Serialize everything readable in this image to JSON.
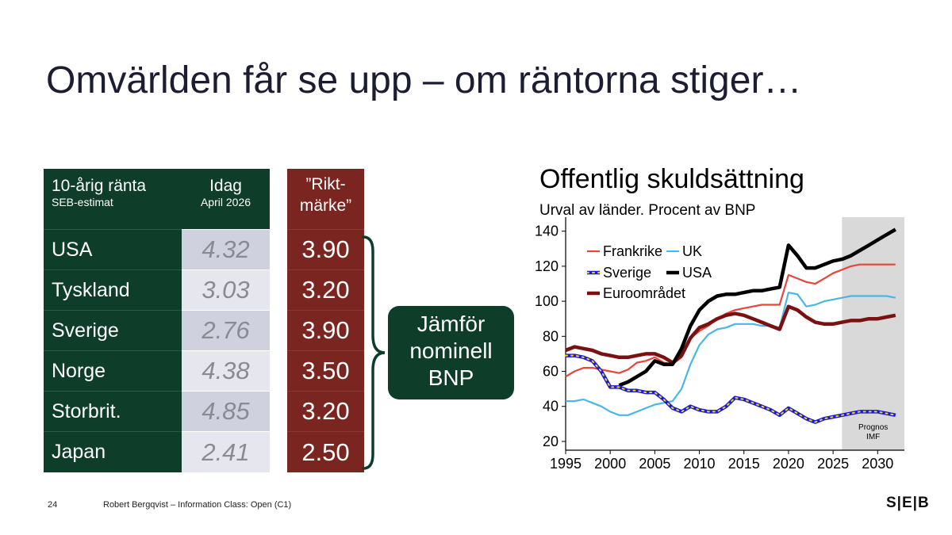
{
  "title": "Omvärlden får se upp – om räntorna stiger…",
  "table": {
    "country_header": "10-årig ränta",
    "country_subheader": "SEB-estimat",
    "idag_header": "Idag",
    "idag_subheader": "April 2026",
    "rikt_header_line1": "”Rikt-",
    "rikt_header_line2": "märke”",
    "rows": [
      {
        "country": "USA",
        "idag": "4.32",
        "rikt": "3.90"
      },
      {
        "country": "Tyskland",
        "idag": "3.03",
        "rikt": "3.20"
      },
      {
        "country": "Sverige",
        "idag": "2.76",
        "rikt": "3.90"
      },
      {
        "country": "Norge",
        "idag": "4.38",
        "rikt": "3.50"
      },
      {
        "country": "Storbrit.",
        "idag": "4.85",
        "rikt": "3.20"
      },
      {
        "country": "Japan",
        "idag": "2.41",
        "rikt": "2.50"
      }
    ]
  },
  "callout": {
    "line1": "Jämför",
    "line2": "nominell",
    "line3": "BNP"
  },
  "chart_data": {
    "type": "line",
    "title": "Offentlig skuldsättning",
    "subtitle": "Urval av länder. Procent av BNP",
    "x": [
      1995,
      1996,
      1997,
      1998,
      1999,
      2000,
      2001,
      2002,
      2003,
      2004,
      2005,
      2006,
      2007,
      2008,
      2009,
      2010,
      2011,
      2012,
      2013,
      2014,
      2015,
      2016,
      2017,
      2018,
      2019,
      2020,
      2021,
      2022,
      2023,
      2024,
      2025,
      2026,
      2027,
      2028,
      2029,
      2030,
      2031,
      2032
    ],
    "xlim": [
      1995,
      2033
    ],
    "ylim": [
      15,
      148
    ],
    "xticks": [
      1995,
      2000,
      2005,
      2010,
      2015,
      2020,
      2025,
      2030
    ],
    "yticks": [
      20,
      40,
      60,
      80,
      100,
      120,
      140
    ],
    "forecast_start": 2026,
    "forecast_label_line1": "Prognos",
    "forecast_label_line2": "IMF",
    "series": [
      {
        "name": "Frankrike",
        "color": "#e8453c",
        "width": 2.2,
        "style": "solid",
        "values": [
          57,
          60,
          62,
          62,
          61,
          60,
          59,
          61,
          65,
          66,
          68,
          65,
          64,
          68,
          79,
          83,
          86,
          90,
          93,
          95,
          96,
          97,
          98,
          98,
          98,
          115,
          113,
          111,
          110,
          113,
          116,
          118,
          120,
          121,
          121,
          121,
          121,
          121
        ]
      },
      {
        "name": "UK",
        "color": "#4ab6e8",
        "width": 2.2,
        "style": "solid",
        "values": [
          43,
          43,
          44,
          42,
          40,
          37,
          35,
          35,
          37,
          39,
          41,
          42,
          43,
          50,
          64,
          75,
          81,
          84,
          85,
          87,
          87,
          87,
          86,
          86,
          85,
          105,
          104,
          97,
          98,
          100,
          101,
          102,
          103,
          103,
          103,
          103,
          103,
          102
        ]
      },
      {
        "name": "Sverige",
        "color": "#1a1adb",
        "width": 4.5,
        "style": "sverige",
        "values": [
          69,
          69,
          68,
          66,
          60,
          51,
          51,
          49,
          49,
          48,
          48,
          44,
          39,
          37,
          40,
          38,
          37,
          37,
          40,
          45,
          44,
          42,
          40,
          38,
          35,
          39,
          36,
          33,
          31,
          33,
          34,
          35,
          36,
          37,
          37,
          37,
          36,
          35
        ]
      },
      {
        "name": "USA",
        "color": "#000000",
        "width": 4.5,
        "style": "solid",
        "values": [
          null,
          null,
          null,
          null,
          null,
          null,
          52,
          54,
          57,
          60,
          66,
          64,
          64,
          73,
          86,
          95,
          100,
          103,
          104,
          104,
          105,
          106,
          106,
          107,
          108,
          132,
          126,
          119,
          119,
          121,
          123,
          124,
          126,
          129,
          132,
          135,
          138,
          141
        ]
      },
      {
        "name": "Euroområdet",
        "color": "#7a1010",
        "width": 4.5,
        "style": "solid",
        "values": [
          72,
          74,
          73,
          72,
          70,
          69,
          68,
          68,
          69,
          70,
          70,
          68,
          65,
          69,
          79,
          85,
          87,
          90,
          92,
          93,
          92,
          90,
          88,
          86,
          84,
          97,
          95,
          91,
          88,
          87,
          87,
          88,
          89,
          89,
          90,
          90,
          91,
          92
        ]
      }
    ],
    "legend": [
      {
        "name": "Frankrike",
        "style": "thin"
      },
      {
        "name": "UK",
        "style": "thin"
      },
      {
        "name": "Sverige",
        "style": "sverige"
      },
      {
        "name": "USA",
        "style": "thick"
      },
      {
        "name": "Euroområdet",
        "style": "thick"
      }
    ],
    "colors": {
      "forecast_band": "#d9d9d9",
      "axis": "#000000"
    }
  },
  "footer": {
    "page": "24",
    "text": "Robert Bergqvist – Information Class: Open (C1)",
    "logo": "S|E|B"
  },
  "colors": {
    "green": "#0e3d2a",
    "red": "#7a2520",
    "grey_cell_a": "#cfd2de",
    "grey_cell_b": "#e6e7ee"
  }
}
